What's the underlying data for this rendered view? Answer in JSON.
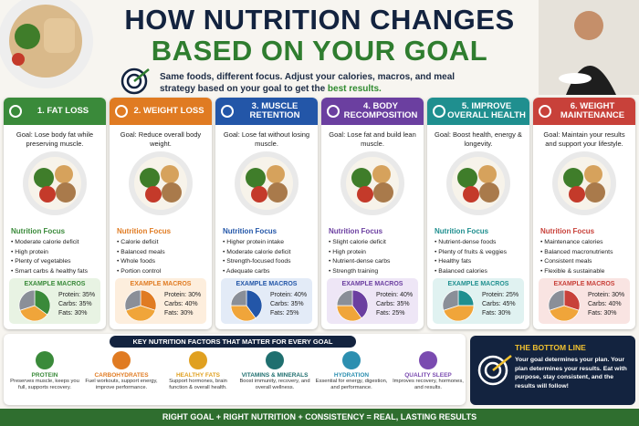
{
  "header": {
    "title_line1": "HOW NUTRITION CHANGES",
    "title_line2": "BASED ON YOUR GOAL",
    "subtitle": "Same foods, different focus. Adjust your calories, macros, and meal strategy based on your goal to get the",
    "subtitle_highlight": "best results."
  },
  "cards": [
    {
      "title": "1. FAT LOSS",
      "goal": "Goal: Lose body fat while preserving muscle.",
      "focus_title": "Nutrition Focus",
      "focus": [
        "Moderate calorie deficit",
        "High protein",
        "Plenty of vegetables",
        "Smart carbs & healthy fats"
      ],
      "macros_title": "EXAMPLE MACROS",
      "macros": [
        {
          "label": "Protein:",
          "value": 35,
          "value_label": "35%"
        },
        {
          "label": "Carbs:",
          "value": 35,
          "value_label": "35%"
        },
        {
          "label": "Fats:",
          "value": 30,
          "value_label": "30%"
        }
      ]
    },
    {
      "title": "2. WEIGHT LOSS",
      "goal": "Goal: Reduce overall body weight.",
      "focus_title": "Nutrition Focus",
      "focus": [
        "Calorie deficit",
        "Balanced meals",
        "Whole foods",
        "Portion control"
      ],
      "macros_title": "EXAMPLE MACROS",
      "macros": [
        {
          "label": "Protein:",
          "value": 30,
          "value_label": "30%"
        },
        {
          "label": "Carbs:",
          "value": 40,
          "value_label": "40%"
        },
        {
          "label": "Fats:",
          "value": 30,
          "value_label": "30%"
        }
      ]
    },
    {
      "title": "3. MUSCLE RETENTION",
      "goal": "Goal: Lose fat without losing muscle.",
      "focus_title": "Nutrition Focus",
      "focus": [
        "Higher protein intake",
        "Moderate calorie deficit",
        "Strength-focused foods",
        "Adequate carbs"
      ],
      "macros_title": "EXAMPLE MACROS",
      "macros": [
        {
          "label": "Protein:",
          "value": 40,
          "value_label": "40%"
        },
        {
          "label": "Carbs:",
          "value": 35,
          "value_label": "35%"
        },
        {
          "label": "Fats:",
          "value": 25,
          "value_label": "25%"
        }
      ]
    },
    {
      "title": "4. BODY RECOMPOSITION",
      "goal": "Goal: Lose fat and build lean muscle.",
      "focus_title": "Nutrition Focus",
      "focus": [
        "Slight calorie deficit",
        "High protein",
        "Nutrient-dense carbs",
        "Strength training"
      ],
      "macros_title": "EXAMPLE MACROS",
      "macros": [
        {
          "label": "Protein:",
          "value": 40,
          "value_label": "40%"
        },
        {
          "label": "Carbs:",
          "value": 35,
          "value_label": "35%"
        },
        {
          "label": "Fats:",
          "value": 25,
          "value_label": "25%"
        }
      ]
    },
    {
      "title": "5. IMPROVE OVERALL HEALTH",
      "goal": "Goal: Boost health, energy & longevity.",
      "focus_title": "Nutrition Focus",
      "focus": [
        "Nutrient-dense foods",
        "Plenty of fruits & veggies",
        "Healthy fats",
        "Balanced calories"
      ],
      "macros_title": "EXAMPLE MACROS",
      "macros": [
        {
          "label": "Protein:",
          "value": 25,
          "value_label": "25%"
        },
        {
          "label": "Carbs:",
          "value": 45,
          "value_label": "45%"
        },
        {
          "label": "Fats:",
          "value": 30,
          "value_label": "30%"
        }
      ]
    },
    {
      "title": "6. WEIGHT MAINTENANCE",
      "goal": "Goal: Maintain your results and support your lifestyle.",
      "focus_title": "Nutrition Focus",
      "focus": [
        "Maintenance calories",
        "Balanced macronutrients",
        "Consistent meals",
        "Flexible & sustainable"
      ],
      "macros_title": "EXAMPLE MACROS",
      "macros": [
        {
          "label": "Protein:",
          "value": 30,
          "value_label": "30%"
        },
        {
          "label": "Carbs:",
          "value": 40,
          "value_label": "40%"
        },
        {
          "label": "Fats:",
          "value": 30,
          "value_label": "30%"
        }
      ]
    }
  ],
  "factors": {
    "title": "KEY NUTRITION FACTORS THAT MATTER FOR EVERY GOAL",
    "items": [
      {
        "name": "PROTEIN",
        "text": "Preserves muscle, keeps you full, supports recovery."
      },
      {
        "name": "CARBOHYDRATES",
        "text": "Fuel workouts, support energy, improve performance."
      },
      {
        "name": "HEALTHY FATS",
        "text": "Support hormones, brain function & overall health."
      },
      {
        "name": "VITAMINS & MINERALS",
        "text": "Boost immunity, recovery, and overall wellness."
      },
      {
        "name": "HYDRATION",
        "text": "Essential for energy, digestion, and performance."
      },
      {
        "name": "QUALITY SLEEP",
        "text": "Improves recovery, hormones, and results."
      }
    ]
  },
  "bottom_line": {
    "title": "THE BOTTOM LINE",
    "text": "Your goal determines your plan. Your plan determines your results. Eat with purpose, stay consistent, and the results will follow!"
  },
  "footer": "RIGHT GOAL + RIGHT NUTRITION + CONSISTENCY = REAL, LASTING RESULTS"
}
